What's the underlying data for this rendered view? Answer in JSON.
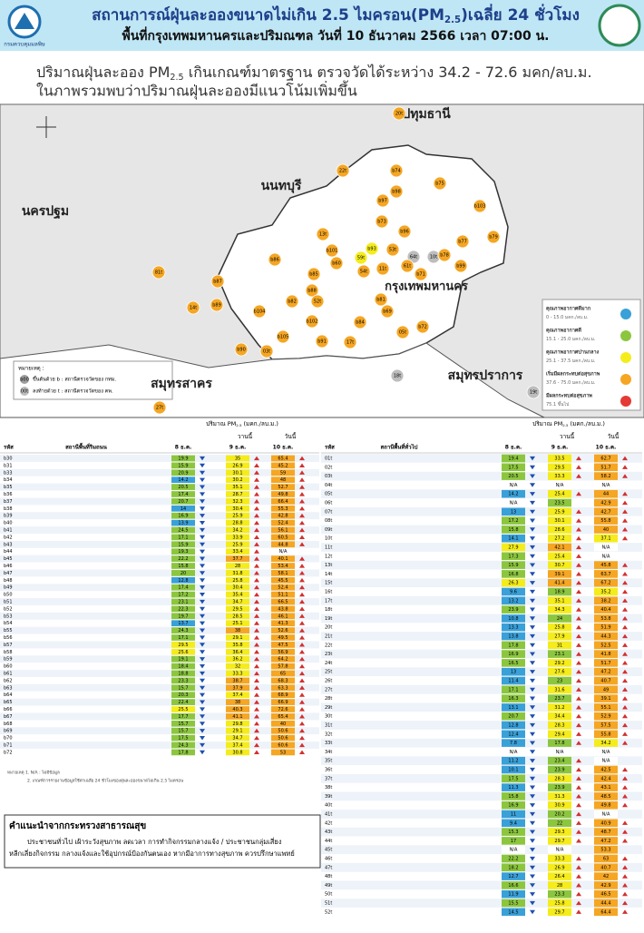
{
  "header": {
    "logo_text": "กรมควบคุมมลพิษ",
    "title_parts": [
      "สถานการณ์ฝุ่นละอองขนาดไม่เกิน 2.5 ไมครอน(PM",
      "2.5",
      ")เฉลี่ย 24 ชั่วโมง"
    ],
    "subtitle": "พื้นที่กรุงเทพมหานครและปริมณฑล วันที่ 10 ธันวาคม 2566 เวลา 07:00 น."
  },
  "summary": {
    "line1_parts": [
      "ปริมาณฝุ่นละออง PM",
      "2.5",
      " เกินเกณฑ์มาตรฐาน ตรวจวัดได้ระหว่าง 34.2 - 72.6 มคก/ลบ.ม."
    ],
    "line2": "ในภาพรวมพบว่าปริมาณฝุ่นละอองมีแนวโน้มเพิ่มขึ้น"
  },
  "map": {
    "provinces": [
      "ปทุมธานี",
      "นนทบุรี",
      "นครปฐม",
      "กรุงเทพมหานคร",
      "สมุทรสาคร",
      "สมุทรปราการ"
    ],
    "note_title": "หมายเหตุ :",
    "notes": [
      {
        "sample": "b00",
        "text": "ขึ้นต้นด้วย b : สถานีตรวจวัดของ กทม."
      },
      {
        "sample": "00t",
        "text": "ลงท้ายด้วย t : สถานีตรวจวัดของ คพ."
      }
    ],
    "stations": [
      {
        "label": "20t",
        "color": "#f5a623"
      },
      {
        "label": "22t",
        "color": "#f5a623"
      },
      {
        "label": "b74",
        "color": "#f5a623"
      },
      {
        "label": "b75",
        "color": "#f5a623"
      },
      {
        "label": "b97",
        "color": "#f5a623"
      },
      {
        "label": "b98",
        "color": "#f5a623"
      },
      {
        "label": "b103",
        "color": "#f5a623"
      },
      {
        "label": "b73",
        "color": "#f5a623"
      },
      {
        "label": "b96",
        "color": "#f5a623"
      },
      {
        "label": "b77",
        "color": "#f5a623"
      },
      {
        "label": "b79",
        "color": "#f5a623"
      },
      {
        "label": "13t",
        "color": "#f5a623"
      },
      {
        "label": "b101",
        "color": "#f5a623"
      },
      {
        "label": "b93",
        "color": "#f5ec1c"
      },
      {
        "label": "53t",
        "color": "#f5a623"
      },
      {
        "label": "64t",
        "color": "#bdbdbd"
      },
      {
        "label": "10t",
        "color": "#bdbdbd"
      },
      {
        "label": "b78",
        "color": "#f5a623"
      },
      {
        "label": "b99",
        "color": "#f5a623"
      },
      {
        "label": "b86",
        "color": "#f5a623"
      },
      {
        "label": "81t",
        "color": "#f5a623"
      },
      {
        "label": "b87",
        "color": "#f5a623"
      },
      {
        "label": "14t",
        "color": "#f5a623"
      },
      {
        "label": "b89",
        "color": "#f5a623"
      },
      {
        "label": "b104",
        "color": "#f5a623"
      },
      {
        "label": "b82",
        "color": "#f5a623"
      },
      {
        "label": "b88",
        "color": "#f5a623"
      },
      {
        "label": "b85",
        "color": "#f5a623"
      },
      {
        "label": "b60",
        "color": "#f5a623"
      },
      {
        "label": "59t",
        "color": "#f5ec1c"
      },
      {
        "label": "54t",
        "color": "#f5a623"
      },
      {
        "label": "11t",
        "color": "#f5a623"
      },
      {
        "label": "61t",
        "color": "#f5a623"
      },
      {
        "label": "b71",
        "color": "#f5a623"
      },
      {
        "label": "b81",
        "color": "#f5a623"
      },
      {
        "label": "b69",
        "color": "#f5a623"
      },
      {
        "label": "b72",
        "color": "#f5a623"
      },
      {
        "label": "05t",
        "color": "#f5a623"
      },
      {
        "label": "b84",
        "color": "#f5a623"
      },
      {
        "label": "17t",
        "color": "#f5a623"
      },
      {
        "label": "b91",
        "color": "#f5a623"
      },
      {
        "label": "b105",
        "color": "#f5a623"
      },
      {
        "label": "b90",
        "color": "#f5a623"
      },
      {
        "label": "03t",
        "color": "#f5a623"
      },
      {
        "label": "b102",
        "color": "#f5a623"
      },
      {
        "label": "52t",
        "color": "#f5a623"
      },
      {
        "label": "18t",
        "color": "#bdbdbd"
      },
      {
        "label": "19t",
        "color": "#bdbdbd"
      },
      {
        "label": "27t",
        "color": "#f5a623"
      }
    ]
  },
  "legend": {
    "separator": " - ",
    "unit": " มคก./ลบ.ม.",
    "items": [
      {
        "label": "คุณภาพอากาศดีมาก",
        "color": "#3aa0d8",
        "min": 0,
        "max": {
          "value": 15,
          "label": "15.0"
        }
      },
      {
        "label": "คุณภาพอากาศดี",
        "color": "#8cc63f",
        "min": 15.1,
        "max": {
          "value": 25,
          "label": "25.0"
        }
      },
      {
        "label": "คุณภาพอากาศปานกลาง",
        "color": "#f5ec1c",
        "min": 25.1,
        "max": 37.5
      },
      {
        "label": "เริ่มมีผลกระทบต่อสุขภาพ",
        "color": "#f5a623",
        "min": 37.6,
        "max": {
          "value": 75,
          "label": "75.0"
        }
      },
      {
        "label": "มีผลกระทบต่อสุขภาพ",
        "color": "#e53935",
        "min": 75.1,
        "suffix": " ขึ้นไป"
      }
    ]
  },
  "table_header": {
    "title_parts": [
      "ปริมาณ PM",
      "2.5",
      " (มคก./ลบ.ม.)"
    ],
    "yesterday": "วานนี้",
    "today": "วันนี้",
    "code": "รหัส",
    "dates": [
      "8 ธ.ค.",
      "9 ธ.ค.",
      "10 ธ.ค."
    ]
  },
  "left_table": {
    "heading": "สถานีพื้นที่ริมถนน",
    "rows": [
      {
        "code": "b30",
        "values": [
          19.9,
          35.0,
          65.4
        ]
      },
      {
        "code": "b31",
        "values": [
          15.9,
          26.9,
          45.2
        ]
      },
      {
        "code": "b33",
        "values": [
          20.9,
          30.1,
          59.0
        ]
      },
      {
        "code": "b34",
        "values": [
          14.2,
          30.2,
          48.0
        ]
      },
      {
        "code": "b35",
        "values": [
          20.5,
          35.1,
          52.7
        ]
      },
      {
        "code": "b36",
        "values": [
          17.4,
          28.7,
          49.8
        ]
      },
      {
        "code": "b37",
        "values": [
          20.7,
          32.3,
          66.4
        ]
      },
      {
        "code": "b38",
        "values": [
          14.0,
          30.4,
          55.3
        ]
      },
      {
        "code": "b39",
        "values": [
          16.9,
          25.9,
          42.8
        ]
      },
      {
        "code": "b40",
        "values": [
          13.9,
          28.8,
          52.4
        ]
      },
      {
        "code": "b41",
        "values": [
          24.5,
          34.2,
          56.1
        ]
      },
      {
        "code": "b42",
        "values": [
          17.1,
          33.9,
          60.5
        ]
      },
      {
        "code": "b43",
        "values": [
          15.9,
          25.9,
          44.8
        ]
      },
      {
        "code": "b44",
        "values": [
          19.3,
          33.4,
          "N/A"
        ]
      },
      {
        "code": "b45",
        "values": [
          22.2,
          37.7,
          40.1
        ]
      },
      {
        "code": "b46",
        "values": [
          15.8,
          28.0,
          53.4
        ]
      },
      {
        "code": "b47",
        "values": [
          20.0,
          31.8,
          58.1
        ]
      },
      {
        "code": "b48",
        "values": [
          12.8,
          25.8,
          45.5
        ]
      },
      {
        "code": "b49",
        "values": [
          17.4,
          30.4,
          52.4
        ]
      },
      {
        "code": "b50",
        "values": [
          17.2,
          35.4,
          51.1
        ]
      },
      {
        "code": "b51",
        "values": [
          23.1,
          34.7,
          66.5
        ]
      },
      {
        "code": "b52",
        "values": [
          22.3,
          29.5,
          43.8
        ]
      },
      {
        "code": "b53",
        "values": [
          19.7,
          28.5,
          46.1
        ]
      },
      {
        "code": "b54",
        "values": [
          13.7,
          25.1,
          41.3
        ]
      },
      {
        "code": "b55",
        "values": [
          24.3,
          38.0,
          52.6
        ]
      },
      {
        "code": "b56",
        "values": [
          17.1,
          29.1,
          49.5
        ]
      },
      {
        "code": "b57",
        "values": [
          29.5,
          35.8,
          47.5
        ]
      },
      {
        "code": "b58",
        "values": [
          25.6,
          36.4,
          56.9
        ]
      },
      {
        "code": "b59",
        "values": [
          19.1,
          36.2,
          64.2
        ]
      },
      {
        "code": "b60",
        "values": [
          18.4,
          32.0,
          57.8
        ]
      },
      {
        "code": "b61",
        "values": [
          18.8,
          33.3,
          65.0
        ]
      },
      {
        "code": "b62",
        "values": [
          23.3,
          38.7,
          68.3
        ]
      },
      {
        "code": "b63",
        "values": [
          15.7,
          37.9,
          63.3
        ]
      },
      {
        "code": "b64",
        "values": [
          20.3,
          37.4,
          68.9
        ]
      },
      {
        "code": "b65",
        "values": [
          22.4,
          38.0,
          66.9
        ]
      },
      {
        "code": "b66",
        "values": [
          25.5,
          40.3,
          72.6
        ]
      },
      {
        "code": "b67",
        "values": [
          17.7,
          41.1,
          65.4
        ]
      },
      {
        "code": "b68",
        "values": [
          15.7,
          29.8,
          40.0
        ]
      },
      {
        "code": "b69",
        "values": [
          15.7,
          29.1,
          50.6
        ]
      },
      {
        "code": "b70",
        "values": [
          17.5,
          34.7,
          50.6
        ]
      },
      {
        "code": "b71",
        "values": [
          24.3,
          37.4,
          60.6
        ]
      },
      {
        "code": "b72",
        "values": [
          17.8,
          30.8,
          53.0
        ]
      }
    ]
  },
  "right_table": {
    "heading": "สถานีพื้นที่ทั่วไป",
    "rows": [
      {
        "code": "01t",
        "values": [
          19.4,
          33.5,
          62.7
        ]
      },
      {
        "code": "02t",
        "values": [
          17.5,
          29.5,
          51.7
        ]
      },
      {
        "code": "03t",
        "values": [
          20.5,
          33.3,
          58.2
        ]
      },
      {
        "code": "04t",
        "values": [
          "N/A",
          "N/A",
          "N/A"
        ]
      },
      {
        "code": "05t",
        "values": [
          14.2,
          25.4,
          44.0
        ]
      },
      {
        "code": "06t",
        "values": [
          "N/A",
          23.5,
          42.9
        ]
      },
      {
        "code": "07t",
        "values": [
          13.0,
          25.9,
          42.7
        ]
      },
      {
        "code": "08t",
        "values": [
          17.2,
          30.1,
          55.8
        ]
      },
      {
        "code": "09t",
        "values": [
          15.8,
          28.6,
          40.0
        ]
      },
      {
        "code": "10t",
        "values": [
          14.1,
          27.2,
          37.1
        ]
      },
      {
        "code": "11t",
        "values": [
          27.9,
          42.1,
          "N/A"
        ]
      },
      {
        "code": "12t",
        "values": [
          17.3,
          25.4,
          "N/A"
        ]
      },
      {
        "code": "13t",
        "values": [
          15.9,
          30.7,
          45.8
        ]
      },
      {
        "code": "14t",
        "values": [
          16.8,
          39.1,
          63.7
        ]
      },
      {
        "code": "15t",
        "values": [
          26.3,
          41.4,
          67.2
        ]
      },
      {
        "code": "16t",
        "values": [
          9.6,
          18.9,
          35.2
        ]
      },
      {
        "code": "17t",
        "values": [
          13.2,
          35.1,
          38.2
        ]
      },
      {
        "code": "18t",
        "values": [
          23.9,
          34.3,
          40.4
        ]
      },
      {
        "code": "19t",
        "values": [
          10.8,
          24.0,
          53.8
        ]
      },
      {
        "code": "20t",
        "values": [
          13.3,
          25.8,
          51.9
        ]
      },
      {
        "code": "21t",
        "values": [
          13.8,
          27.9,
          44.3
        ]
      },
      {
        "code": "22t",
        "values": [
          17.8,
          31.0,
          52.5
        ]
      },
      {
        "code": "23t",
        "values": [
          16.9,
          23.1,
          41.8
        ]
      },
      {
        "code": "24t",
        "values": [
          16.5,
          29.2,
          51.7
        ]
      },
      {
        "code": "25t",
        "values": [
          13.0,
          27.6,
          47.2
        ]
      },
      {
        "code": "26t",
        "values": [
          11.4,
          23.0,
          40.7
        ]
      },
      {
        "code": "27t",
        "values": [
          17.1,
          31.6,
          49.0
        ]
      },
      {
        "code": "28t",
        "values": [
          16.3,
          23.7,
          39.1
        ]
      },
      {
        "code": "29t",
        "values": [
          13.1,
          31.2,
          55.1
        ]
      },
      {
        "code": "30t",
        "values": [
          20.7,
          34.4,
          52.9
        ]
      },
      {
        "code": "31t",
        "values": [
          12.8,
          28.3,
          57.5
        ]
      },
      {
        "code": "32t",
        "values": [
          12.4,
          29.4,
          55.8
        ]
      },
      {
        "code": "33t",
        "values": [
          7.8,
          17.8,
          34.2
        ]
      },
      {
        "code": "34t",
        "values": [
          "N/A",
          "N/A",
          "N/A"
        ]
      },
      {
        "code": "35t",
        "values": [
          11.2,
          23.4,
          "N/A"
        ]
      },
      {
        "code": "36t",
        "values": [
          10.1,
          23.9,
          42.5
        ]
      },
      {
        "code": "37t",
        "values": [
          17.5,
          28.3,
          42.4
        ]
      },
      {
        "code": "38t",
        "values": [
          11.3,
          23.9,
          43.1
        ]
      },
      {
        "code": "39t",
        "values": [
          15.8,
          31.3,
          48.5
        ]
      },
      {
        "code": "40t",
        "values": [
          16.9,
          30.9,
          49.8
        ]
      },
      {
        "code": "41t",
        "values": [
          11.0,
          20.2,
          "N/A"
        ]
      },
      {
        "code": "42t",
        "values": [
          9.4,
          22.0,
          40.9
        ]
      },
      {
        "code": "43t",
        "values": [
          15.3,
          29.3,
          48.7
        ]
      },
      {
        "code": "44t",
        "values": [
          17.0,
          29.7,
          47.2
        ]
      },
      {
        "code": "45t",
        "values": [
          "N/A",
          "N/A",
          53.3
        ]
      },
      {
        "code": "46t",
        "values": [
          22.2,
          33.3,
          63.0
        ]
      },
      {
        "code": "47t",
        "values": [
          18.2,
          26.9,
          40.7
        ]
      },
      {
        "code": "48t",
        "values": [
          12.7,
          26.4,
          42.0
        ]
      },
      {
        "code": "49t",
        "values": [
          16.6,
          28.0,
          42.9
        ]
      },
      {
        "code": "50t",
        "values": [
          11.9,
          23.3,
          46.5
        ]
      },
      {
        "code": "51t",
        "values": [
          15.5,
          25.8,
          44.4
        ]
      },
      {
        "code": "52t",
        "values": [
          14.5,
          29.7,
          64.4
        ]
      }
    ]
  },
  "notes": [
    "หมายเหตุ 1. N/A : ไม่มีข้อมูล",
    "2. เกณฑ์การรายงานข้อมูลใช้ค่าเฉลี่ย 24 ชั่วโมงของฝุ่นละอองขนาดไม่เกิน 2.5 ไมครอน"
  ],
  "advice": {
    "title": "คำแนะนำจากกระทรวงสาธารณสุข",
    "lines": [
      "ประชาชนทั่วไป เฝ้าระวังสุขภาพ ลดเวลา การทำกิจกรรมกลางแจ้ง / ประชาชนกลุ่มเสี่ยง",
      "หลีกเลี่ยงกิจกรรม กลางแจ้งและใช้อุปกรณ์ป้องกันตนเอง หากมีอาการทางสุขภาพ ควรปรึกษาแพทย์"
    ]
  }
}
